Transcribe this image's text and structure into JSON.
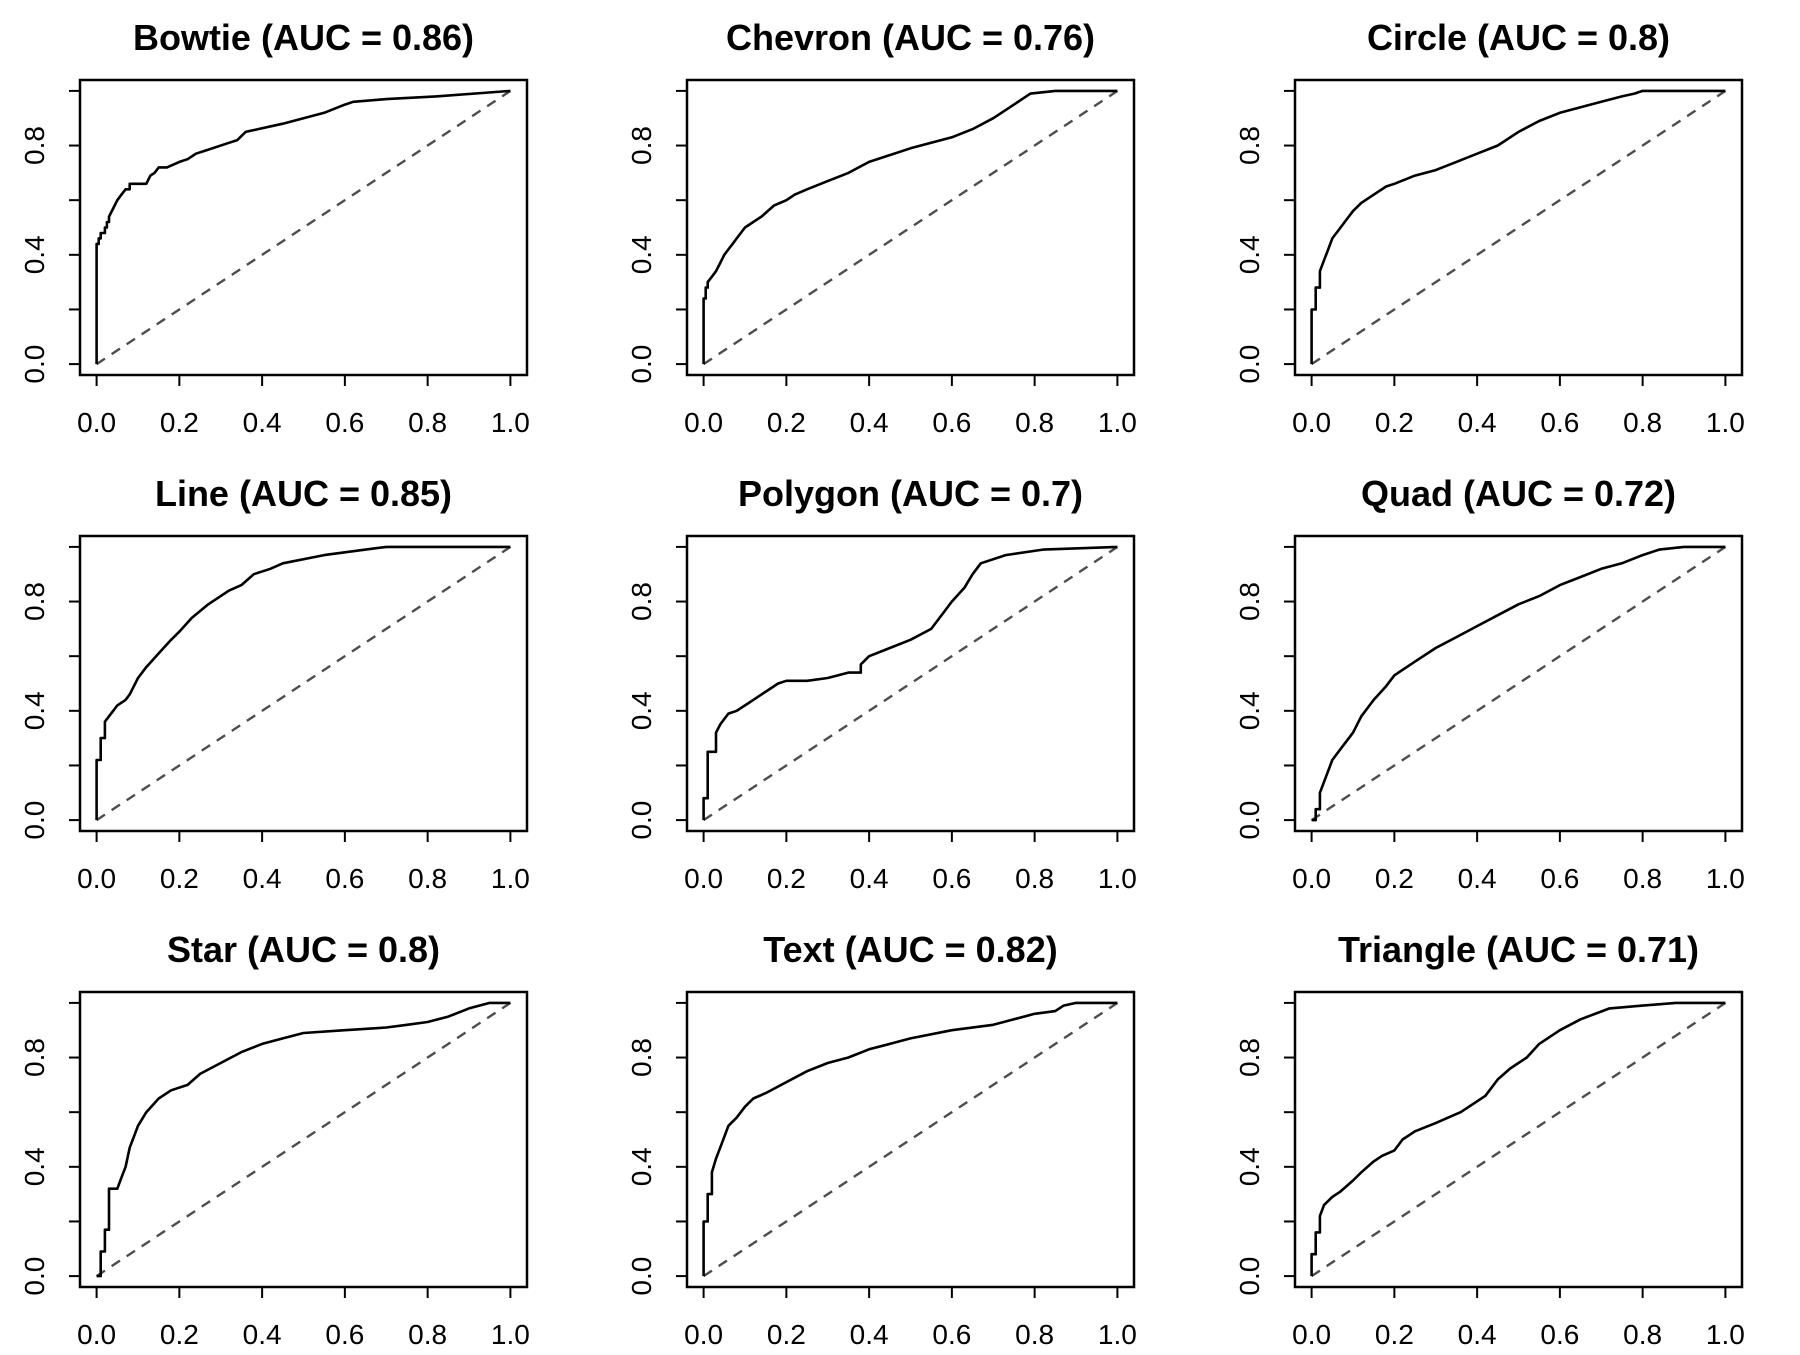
{
  "chart_data": [
    {
      "type": "line",
      "title": "Bowtie (AUC = 0.86)",
      "xlabel": "",
      "ylabel": "",
      "xlim": [
        0,
        1
      ],
      "ylim": [
        0,
        1
      ],
      "x_ticks": [
        "0.0",
        "0.2",
        "0.4",
        "0.6",
        "0.8",
        "1.0"
      ],
      "y_ticks": [
        "0.0",
        "0.4",
        "0.8"
      ],
      "grid": false,
      "series": [
        {
          "x": [
            0,
            0,
            0.005,
            0.005,
            0.01,
            0.01,
            0.02,
            0.02,
            0.025,
            0.025,
            0.03,
            0.03,
            0.04,
            0.05,
            0.06,
            0.07,
            0.08,
            0.08,
            0.12,
            0.13,
            0.14,
            0.15,
            0.17,
            0.2,
            0.22,
            0.24,
            0.26,
            0.32,
            0.34,
            0.36,
            0.45,
            0.5,
            0.55,
            0.6,
            0.62,
            0.7,
            0.82,
            1.0
          ],
          "y": [
            0,
            0.44,
            0.44,
            0.46,
            0.46,
            0.48,
            0.48,
            0.5,
            0.5,
            0.52,
            0.52,
            0.54,
            0.57,
            0.6,
            0.62,
            0.64,
            0.64,
            0.66,
            0.66,
            0.69,
            0.7,
            0.72,
            0.72,
            0.74,
            0.75,
            0.77,
            0.78,
            0.81,
            0.82,
            0.85,
            0.88,
            0.9,
            0.92,
            0.95,
            0.96,
            0.97,
            0.98,
            1.0
          ]
        }
      ],
      "reference": {
        "x": [
          0,
          1
        ],
        "y": [
          0,
          1
        ]
      }
    },
    {
      "type": "line",
      "title": "Chevron (AUC = 0.76)",
      "xlabel": "",
      "ylabel": "",
      "xlim": [
        0,
        1
      ],
      "ylim": [
        0,
        1
      ],
      "x_ticks": [
        "0.0",
        "0.2",
        "0.4",
        "0.6",
        "0.8",
        "1.0"
      ],
      "y_ticks": [
        "0.0",
        "0.4",
        "0.8"
      ],
      "grid": false,
      "series": [
        {
          "x": [
            0,
            0,
            0.005,
            0.005,
            0.01,
            0.01,
            0.02,
            0.03,
            0.04,
            0.05,
            0.06,
            0.07,
            0.08,
            0.1,
            0.12,
            0.14,
            0.17,
            0.2,
            0.22,
            0.25,
            0.3,
            0.35,
            0.4,
            0.5,
            0.6,
            0.65,
            0.7,
            0.74,
            0.77,
            0.79,
            0.85,
            1.0
          ],
          "y": [
            0,
            0.24,
            0.24,
            0.28,
            0.28,
            0.3,
            0.32,
            0.34,
            0.37,
            0.4,
            0.42,
            0.44,
            0.46,
            0.5,
            0.52,
            0.54,
            0.58,
            0.6,
            0.62,
            0.64,
            0.67,
            0.7,
            0.74,
            0.79,
            0.83,
            0.86,
            0.9,
            0.94,
            0.97,
            0.99,
            1.0,
            1.0
          ]
        }
      ],
      "reference": {
        "x": [
          0,
          1
        ],
        "y": [
          0,
          1
        ]
      }
    },
    {
      "type": "line",
      "title": "Circle (AUC = 0.8)",
      "xlabel": "",
      "ylabel": "",
      "xlim": [
        0,
        1
      ],
      "ylim": [
        0,
        1
      ],
      "x_ticks": [
        "0.0",
        "0.2",
        "0.4",
        "0.6",
        "0.8",
        "1.0"
      ],
      "y_ticks": [
        "0.0",
        "0.4",
        "0.8"
      ],
      "grid": false,
      "series": [
        {
          "x": [
            0,
            0,
            0.01,
            0.01,
            0.02,
            0.02,
            0.03,
            0.04,
            0.05,
            0.06,
            0.07,
            0.08,
            0.1,
            0.12,
            0.15,
            0.18,
            0.2,
            0.25,
            0.3,
            0.35,
            0.4,
            0.45,
            0.5,
            0.55,
            0.6,
            0.65,
            0.7,
            0.75,
            0.78,
            0.8,
            1.0
          ],
          "y": [
            0,
            0.2,
            0.2,
            0.28,
            0.28,
            0.34,
            0.38,
            0.42,
            0.46,
            0.48,
            0.5,
            0.52,
            0.56,
            0.59,
            0.62,
            0.65,
            0.66,
            0.69,
            0.71,
            0.74,
            0.77,
            0.8,
            0.85,
            0.89,
            0.92,
            0.94,
            0.96,
            0.98,
            0.99,
            1.0,
            1.0
          ]
        }
      ],
      "reference": {
        "x": [
          0,
          1
        ],
        "y": [
          0,
          1
        ]
      }
    },
    {
      "type": "line",
      "title": "Line (AUC = 0.85)",
      "xlabel": "",
      "ylabel": "",
      "xlim": [
        0,
        1
      ],
      "ylim": [
        0,
        1
      ],
      "x_ticks": [
        "0.0",
        "0.2",
        "0.4",
        "0.6",
        "0.8",
        "1.0"
      ],
      "y_ticks": [
        "0.0",
        "0.4",
        "0.8"
      ],
      "grid": false,
      "series": [
        {
          "x": [
            0,
            0,
            0.01,
            0.01,
            0.02,
            0.02,
            0.03,
            0.04,
            0.05,
            0.07,
            0.08,
            0.1,
            0.12,
            0.15,
            0.18,
            0.2,
            0.23,
            0.27,
            0.32,
            0.35,
            0.38,
            0.42,
            0.45,
            0.55,
            0.65,
            0.7,
            1.0
          ],
          "y": [
            0,
            0.22,
            0.22,
            0.3,
            0.3,
            0.36,
            0.38,
            0.4,
            0.42,
            0.44,
            0.46,
            0.52,
            0.56,
            0.61,
            0.66,
            0.69,
            0.74,
            0.79,
            0.84,
            0.86,
            0.9,
            0.92,
            0.94,
            0.97,
            0.99,
            1.0,
            1.0
          ]
        }
      ],
      "reference": {
        "x": [
          0,
          1
        ],
        "y": [
          0,
          1
        ]
      }
    },
    {
      "type": "line",
      "title": "Polygon (AUC = 0.7)",
      "xlabel": "",
      "ylabel": "",
      "xlim": [
        0,
        1
      ],
      "ylim": [
        0,
        1
      ],
      "x_ticks": [
        "0.0",
        "0.2",
        "0.4",
        "0.6",
        "0.8",
        "1.0"
      ],
      "y_ticks": [
        "0.0",
        "0.4",
        "0.8"
      ],
      "grid": false,
      "series": [
        {
          "x": [
            0,
            0,
            0.01,
            0.01,
            0.03,
            0.03,
            0.04,
            0.05,
            0.06,
            0.08,
            0.1,
            0.12,
            0.14,
            0.16,
            0.18,
            0.2,
            0.25,
            0.3,
            0.35,
            0.38,
            0.38,
            0.4,
            0.45,
            0.5,
            0.55,
            0.58,
            0.6,
            0.63,
            0.65,
            0.67,
            0.73,
            0.82,
            1.0
          ],
          "y": [
            0,
            0.08,
            0.08,
            0.25,
            0.25,
            0.32,
            0.35,
            0.37,
            0.39,
            0.4,
            0.42,
            0.44,
            0.46,
            0.48,
            0.5,
            0.51,
            0.51,
            0.52,
            0.54,
            0.54,
            0.57,
            0.6,
            0.63,
            0.66,
            0.7,
            0.76,
            0.8,
            0.85,
            0.9,
            0.94,
            0.97,
            0.99,
            1.0
          ]
        }
      ],
      "reference": {
        "x": [
          0,
          1
        ],
        "y": [
          0,
          1
        ]
      }
    },
    {
      "type": "line",
      "title": "Quad (AUC = 0.72)",
      "xlabel": "",
      "ylabel": "",
      "xlim": [
        0,
        1
      ],
      "ylim": [
        0,
        1
      ],
      "x_ticks": [
        "0.0",
        "0.2",
        "0.4",
        "0.6",
        "0.8",
        "1.0"
      ],
      "y_ticks": [
        "0.0",
        "0.4",
        "0.8"
      ],
      "grid": false,
      "series": [
        {
          "x": [
            0,
            0.01,
            0.01,
            0.02,
            0.02,
            0.03,
            0.04,
            0.05,
            0.06,
            0.08,
            0.1,
            0.12,
            0.15,
            0.18,
            0.2,
            0.25,
            0.3,
            0.35,
            0.4,
            0.45,
            0.5,
            0.55,
            0.6,
            0.65,
            0.7,
            0.75,
            0.8,
            0.84,
            0.9,
            0.95,
            1.0
          ],
          "y": [
            0,
            0,
            0.04,
            0.04,
            0.1,
            0.14,
            0.18,
            0.22,
            0.24,
            0.28,
            0.32,
            0.38,
            0.44,
            0.49,
            0.53,
            0.58,
            0.63,
            0.67,
            0.71,
            0.75,
            0.79,
            0.82,
            0.86,
            0.89,
            0.92,
            0.94,
            0.97,
            0.99,
            1.0,
            1.0,
            1.0
          ]
        }
      ],
      "reference": {
        "x": [
          0,
          1
        ],
        "y": [
          0,
          1
        ]
      }
    },
    {
      "type": "line",
      "title": "Star (AUC = 0.8)",
      "xlabel": "",
      "ylabel": "",
      "xlim": [
        0,
        1
      ],
      "ylim": [
        0,
        1
      ],
      "x_ticks": [
        "0.0",
        "0.2",
        "0.4",
        "0.6",
        "0.8",
        "1.0"
      ],
      "y_ticks": [
        "0.0",
        "0.4",
        "0.8"
      ],
      "grid": false,
      "series": [
        {
          "x": [
            0,
            0.01,
            0.01,
            0.02,
            0.02,
            0.03,
            0.03,
            0.05,
            0.06,
            0.07,
            0.08,
            0.1,
            0.12,
            0.15,
            0.18,
            0.22,
            0.25,
            0.3,
            0.35,
            0.4,
            0.45,
            0.5,
            0.6,
            0.7,
            0.75,
            0.8,
            0.85,
            0.9,
            0.95,
            1.0
          ],
          "y": [
            0,
            0,
            0.09,
            0.09,
            0.17,
            0.17,
            0.32,
            0.32,
            0.36,
            0.4,
            0.47,
            0.55,
            0.6,
            0.65,
            0.68,
            0.7,
            0.74,
            0.78,
            0.82,
            0.85,
            0.87,
            0.89,
            0.9,
            0.91,
            0.92,
            0.93,
            0.95,
            0.98,
            1.0,
            1.0
          ]
        }
      ],
      "reference": {
        "x": [
          0,
          1
        ],
        "y": [
          0,
          1
        ]
      }
    },
    {
      "type": "line",
      "title": "Text (AUC = 0.82)",
      "xlabel": "",
      "ylabel": "",
      "xlim": [
        0,
        1
      ],
      "ylim": [
        0,
        1
      ],
      "x_ticks": [
        "0.0",
        "0.2",
        "0.4",
        "0.6",
        "0.8",
        "1.0"
      ],
      "y_ticks": [
        "0.0",
        "0.4",
        "0.8"
      ],
      "grid": false,
      "series": [
        {
          "x": [
            0,
            0,
            0.01,
            0.01,
            0.02,
            0.02,
            0.03,
            0.04,
            0.05,
            0.06,
            0.08,
            0.1,
            0.12,
            0.15,
            0.2,
            0.25,
            0.3,
            0.35,
            0.4,
            0.45,
            0.5,
            0.6,
            0.7,
            0.75,
            0.8,
            0.85,
            0.87,
            0.9,
            1.0
          ],
          "y": [
            0,
            0.2,
            0.2,
            0.3,
            0.3,
            0.38,
            0.43,
            0.47,
            0.51,
            0.55,
            0.58,
            0.62,
            0.65,
            0.67,
            0.71,
            0.75,
            0.78,
            0.8,
            0.83,
            0.85,
            0.87,
            0.9,
            0.92,
            0.94,
            0.96,
            0.97,
            0.99,
            1.0,
            1.0
          ]
        }
      ],
      "reference": {
        "x": [
          0,
          1
        ],
        "y": [
          0,
          1
        ]
      }
    },
    {
      "type": "line",
      "title": "Triangle (AUC = 0.71)",
      "xlabel": "",
      "ylabel": "",
      "xlim": [
        0,
        1
      ],
      "ylim": [
        0,
        1
      ],
      "x_ticks": [
        "0.0",
        "0.2",
        "0.4",
        "0.6",
        "0.8",
        "1.0"
      ],
      "y_ticks": [
        "0.0",
        "0.4",
        "0.8"
      ],
      "grid": false,
      "series": [
        {
          "x": [
            0,
            0,
            0.01,
            0.01,
            0.02,
            0.02,
            0.03,
            0.05,
            0.07,
            0.1,
            0.12,
            0.15,
            0.17,
            0.2,
            0.22,
            0.25,
            0.3,
            0.33,
            0.36,
            0.4,
            0.42,
            0.45,
            0.48,
            0.52,
            0.55,
            0.6,
            0.65,
            0.72,
            0.8,
            0.88,
            1.0
          ],
          "y": [
            0,
            0.08,
            0.08,
            0.16,
            0.16,
            0.22,
            0.26,
            0.29,
            0.31,
            0.35,
            0.38,
            0.42,
            0.44,
            0.46,
            0.5,
            0.53,
            0.56,
            0.58,
            0.6,
            0.64,
            0.66,
            0.72,
            0.76,
            0.8,
            0.85,
            0.9,
            0.94,
            0.98,
            0.99,
            1.0,
            1.0
          ]
        }
      ],
      "reference": {
        "x": [
          0,
          1
        ],
        "y": [
          0,
          1
        ]
      }
    }
  ],
  "style": {
    "curve_color": "#000000",
    "reference_color": "#4d4d4d",
    "frame_color": "#000000"
  }
}
